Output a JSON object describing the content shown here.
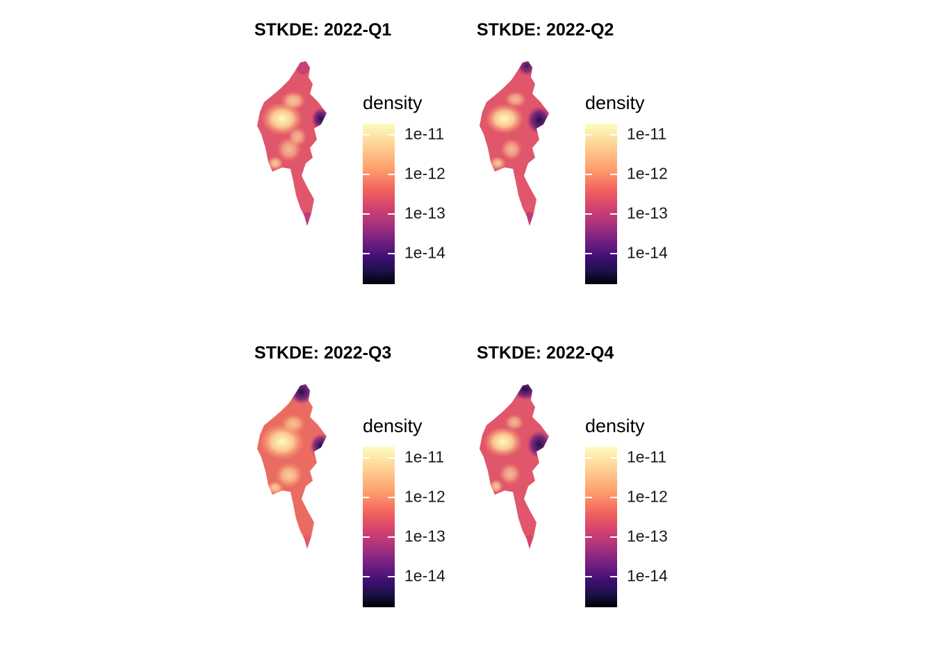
{
  "panels": [
    {
      "title": "STKDE: 2022-Q1"
    },
    {
      "title": "STKDE: 2022-Q2"
    },
    {
      "title": "STKDE: 2022-Q3"
    },
    {
      "title": "STKDE: 2022-Q4"
    }
  ],
  "legend": {
    "title": "density",
    "ticks": [
      "1e-11",
      "1e-12",
      "1e-13",
      "1e-14"
    ]
  },
  "palette": {
    "name": "magma",
    "colors": [
      "#fcfdbf",
      "#fecf92",
      "#fe9f6d",
      "#f1605d",
      "#d3436e",
      "#b5367a",
      "#8c2981",
      "#651a80",
      "#3b0f70",
      "#1d1147",
      "#000004"
    ]
  }
}
